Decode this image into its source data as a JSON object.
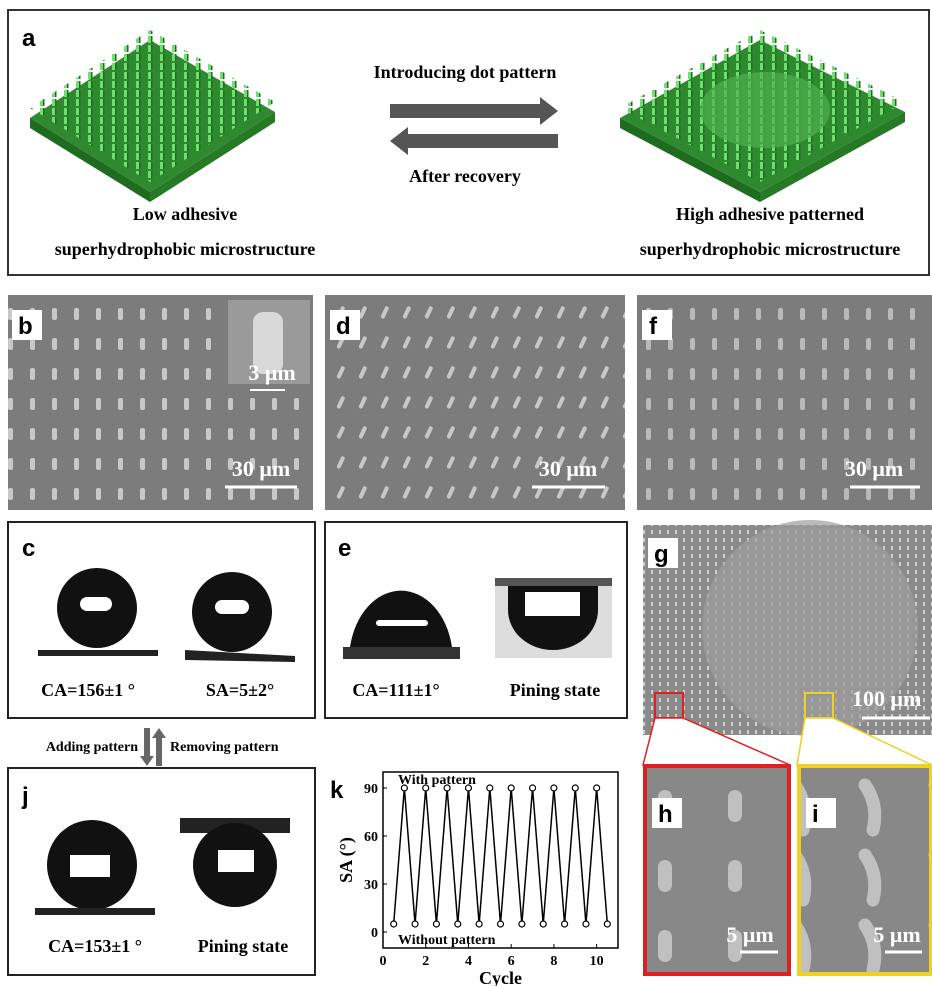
{
  "panels": {
    "a": {
      "label": "a",
      "top": "Introducing dot pattern",
      "bottom": "After recovery",
      "left": [
        "Low adhesive",
        "superhydrophobic microstructure"
      ],
      "right": [
        "High adhesive patterned",
        "superhydrophobic microstructure"
      ]
    },
    "b": {
      "label": "b",
      "inset_scale": "3 μm",
      "scale": "30 μm"
    },
    "d": {
      "label": "d",
      "scale": "30 μm"
    },
    "f": {
      "label": "f",
      "scale": "30 μm"
    },
    "c": {
      "label": "c",
      "captions": [
        "CA=156±1 °",
        "SA=5±2°"
      ]
    },
    "e": {
      "label": "e",
      "captions": [
        "CA=111±1°",
        "Pining state"
      ]
    },
    "g": {
      "label": "g",
      "scale": "100 μm"
    },
    "h": {
      "label": "h",
      "scale": "5 μm"
    },
    "i": {
      "label": "i",
      "scale": "5 μm"
    },
    "transition": {
      "add": "Adding pattern",
      "remove": "Removing pattern"
    },
    "j": {
      "label": "j",
      "captions": [
        "CA=153±1 °",
        "Pining state"
      ]
    },
    "k": {
      "label": "k"
    }
  },
  "chart_data": {
    "type": "line",
    "ylabel": "SA (°)",
    "xlabel": "Cycle",
    "annotations": [
      "With pattern",
      "Without pattern"
    ],
    "color": "#000000",
    "x": [
      0.5,
      1,
      1.5,
      2,
      2.5,
      3,
      3.5,
      4,
      4.5,
      5,
      5.5,
      6,
      6.5,
      7,
      7.5,
      8,
      8.5,
      9,
      9.5,
      10,
      10.5
    ],
    "values": [
      5,
      90,
      5,
      90,
      5,
      90,
      5,
      90,
      5,
      90,
      5,
      90,
      5,
      90,
      5,
      90,
      5,
      90,
      5,
      90,
      5
    ],
    "xlim": [
      0,
      11
    ],
    "xticks": [
      0,
      2,
      4,
      6,
      8,
      10
    ],
    "ylim": [
      -10,
      100
    ],
    "yticks": [
      0,
      30,
      60,
      90
    ]
  }
}
